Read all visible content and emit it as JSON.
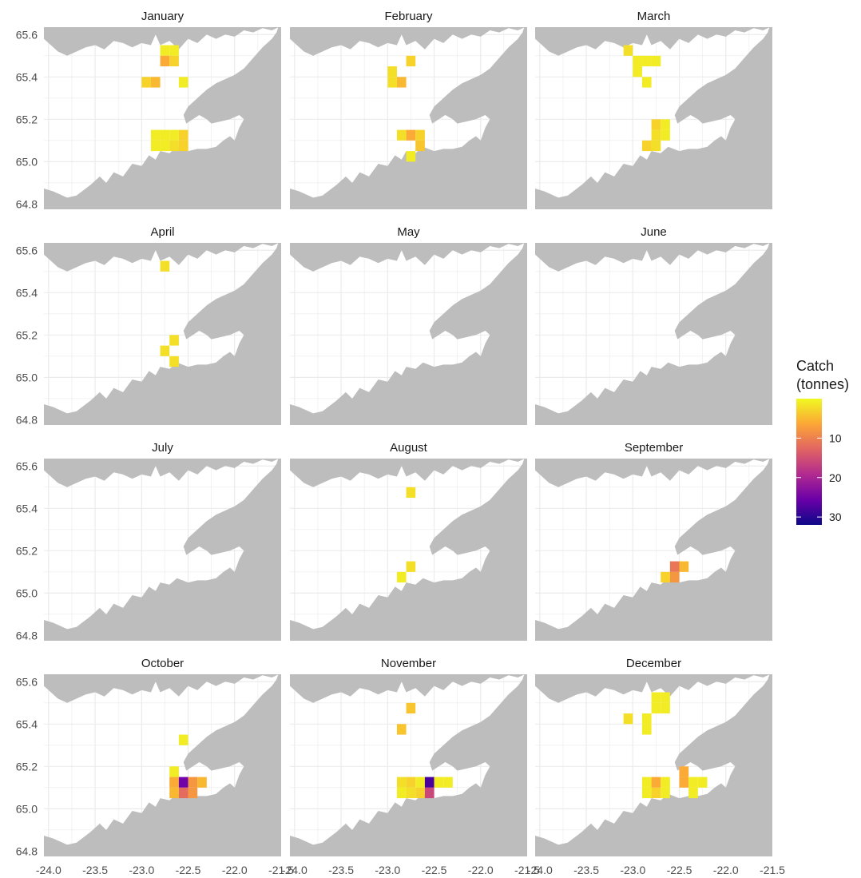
{
  "chart_data": {
    "type": "heatmap",
    "subtype": "faceted geographic heatmap over a land outline",
    "facet_layout": {
      "rows": 4,
      "cols": 3
    },
    "xlim": [
      -24.05,
      -21.5
    ],
    "ylim": [
      64.775,
      65.635
    ],
    "x_ticks": [
      -24.0,
      -23.5,
      -23.0,
      -22.5,
      -22.0,
      -21.5
    ],
    "x_tick_labels": [
      "-24.0",
      "-23.5",
      "-23.0",
      "-22.5",
      "-22.0",
      "-21.5"
    ],
    "y_ticks": [
      64.8,
      65.0,
      65.2,
      65.4,
      65.6
    ],
    "y_tick_labels": [
      "64.8",
      "65.0",
      "65.2",
      "65.4",
      "65.6"
    ],
    "cell_size": {
      "lon": 0.1,
      "lat": 0.05
    },
    "grid": true,
    "land_color": "#bdbdbd",
    "panel_background": "#ffffff",
    "grid_color": "#ebebeb",
    "legend": {
      "title_lines": [
        "Catch",
        "(tonnes)"
      ],
      "placement": "right",
      "scale": "reversed plasma",
      "min": 0,
      "max": 32,
      "ticks": [
        10,
        20,
        30
      ],
      "tick_labels": [
        "10",
        "20",
        "30"
      ],
      "colors": [
        "#f0f921",
        "#fca636",
        "#e16462",
        "#b12a90",
        "#6a00a8",
        "#0d0887"
      ]
    },
    "panels": [
      {
        "title": "January",
        "cells": [
          {
            "lon": -22.75,
            "lat": 65.525,
            "catch": 1
          },
          {
            "lon": -22.65,
            "lat": 65.525,
            "catch": 1
          },
          {
            "lon": -22.75,
            "lat": 65.475,
            "catch": 6
          },
          {
            "lon": -22.65,
            "lat": 65.475,
            "catch": 3
          },
          {
            "lon": -22.95,
            "lat": 65.375,
            "catch": 3
          },
          {
            "lon": -22.85,
            "lat": 65.375,
            "catch": 5
          },
          {
            "lon": -22.55,
            "lat": 65.375,
            "catch": 1
          },
          {
            "lon": -22.85,
            "lat": 65.125,
            "catch": 1
          },
          {
            "lon": -22.75,
            "lat": 65.125,
            "catch": 1
          },
          {
            "lon": -22.65,
            "lat": 65.125,
            "catch": 1
          },
          {
            "lon": -22.55,
            "lat": 65.125,
            "catch": 3
          },
          {
            "lon": -22.85,
            "lat": 65.075,
            "catch": 1
          },
          {
            "lon": -22.75,
            "lat": 65.075,
            "catch": 1
          },
          {
            "lon": -22.65,
            "lat": 65.075,
            "catch": 2
          },
          {
            "lon": -22.55,
            "lat": 65.075,
            "catch": 3
          }
        ]
      },
      {
        "title": "February",
        "cells": [
          {
            "lon": -22.75,
            "lat": 65.475,
            "catch": 3
          },
          {
            "lon": -22.95,
            "lat": 65.425,
            "catch": 2
          },
          {
            "lon": -22.95,
            "lat": 65.375,
            "catch": 2
          },
          {
            "lon": -22.85,
            "lat": 65.375,
            "catch": 5
          },
          {
            "lon": -22.85,
            "lat": 65.125,
            "catch": 2
          },
          {
            "lon": -22.75,
            "lat": 65.125,
            "catch": 6
          },
          {
            "lon": -22.65,
            "lat": 65.125,
            "catch": 3
          },
          {
            "lon": -22.65,
            "lat": 65.075,
            "catch": 4
          },
          {
            "lon": -22.75,
            "lat": 65.025,
            "catch": 1
          }
        ]
      },
      {
        "title": "March",
        "cells": [
          {
            "lon": -23.05,
            "lat": 65.525,
            "catch": 2
          },
          {
            "lon": -22.95,
            "lat": 65.475,
            "catch": 1
          },
          {
            "lon": -22.85,
            "lat": 65.475,
            "catch": 1
          },
          {
            "lon": -22.75,
            "lat": 65.475,
            "catch": 1
          },
          {
            "lon": -22.95,
            "lat": 65.425,
            "catch": 1
          },
          {
            "lon": -22.85,
            "lat": 65.375,
            "catch": 1
          },
          {
            "lon": -22.75,
            "lat": 65.175,
            "catch": 3
          },
          {
            "lon": -22.65,
            "lat": 65.175,
            "catch": 1
          },
          {
            "lon": -22.75,
            "lat": 65.125,
            "catch": 2
          },
          {
            "lon": -22.65,
            "lat": 65.125,
            "catch": 1
          },
          {
            "lon": -22.85,
            "lat": 65.075,
            "catch": 3
          },
          {
            "lon": -22.75,
            "lat": 65.075,
            "catch": 2
          }
        ]
      },
      {
        "title": "April",
        "cells": [
          {
            "lon": -22.75,
            "lat": 65.525,
            "catch": 2
          },
          {
            "lon": -22.65,
            "lat": 65.175,
            "catch": 2
          },
          {
            "lon": -22.75,
            "lat": 65.125,
            "catch": 2
          },
          {
            "lon": -22.65,
            "lat": 65.075,
            "catch": 2
          }
        ]
      },
      {
        "title": "May",
        "cells": []
      },
      {
        "title": "June",
        "cells": []
      },
      {
        "title": "July",
        "cells": []
      },
      {
        "title": "August",
        "cells": [
          {
            "lon": -22.75,
            "lat": 65.475,
            "catch": 2
          },
          {
            "lon": -22.75,
            "lat": 65.125,
            "catch": 2
          },
          {
            "lon": -22.85,
            "lat": 65.075,
            "catch": 1
          }
        ]
      },
      {
        "title": "September",
        "cells": [
          {
            "lon": -22.55,
            "lat": 65.125,
            "catch": 11
          },
          {
            "lon": -22.45,
            "lat": 65.125,
            "catch": 5
          },
          {
            "lon": -22.65,
            "lat": 65.075,
            "catch": 3
          },
          {
            "lon": -22.55,
            "lat": 65.075,
            "catch": 8
          }
        ]
      },
      {
        "title": "October",
        "cells": [
          {
            "lon": -22.55,
            "lat": 65.325,
            "catch": 1
          },
          {
            "lon": -22.65,
            "lat": 65.175,
            "catch": 1
          },
          {
            "lon": -22.65,
            "lat": 65.125,
            "catch": 6
          },
          {
            "lon": -22.55,
            "lat": 65.125,
            "catch": 25
          },
          {
            "lon": -22.45,
            "lat": 65.125,
            "catch": 8
          },
          {
            "lon": -22.35,
            "lat": 65.125,
            "catch": 5
          },
          {
            "lon": -22.65,
            "lat": 65.075,
            "catch": 5
          },
          {
            "lon": -22.55,
            "lat": 65.075,
            "catch": 12
          },
          {
            "lon": -22.45,
            "lat": 65.075,
            "catch": 8
          }
        ]
      },
      {
        "title": "November",
        "cells": [
          {
            "lon": -22.75,
            "lat": 65.475,
            "catch": 4
          },
          {
            "lon": -22.85,
            "lat": 65.375,
            "catch": 4
          },
          {
            "lon": -22.85,
            "lat": 65.125,
            "catch": 2
          },
          {
            "lon": -22.75,
            "lat": 65.125,
            "catch": 3
          },
          {
            "lon": -22.65,
            "lat": 65.125,
            "catch": 1
          },
          {
            "lon": -22.55,
            "lat": 65.125,
            "catch": 28
          },
          {
            "lon": -22.45,
            "lat": 65.125,
            "catch": 1
          },
          {
            "lon": -22.35,
            "lat": 65.125,
            "catch": 1
          },
          {
            "lon": -22.85,
            "lat": 65.075,
            "catch": 1
          },
          {
            "lon": -22.75,
            "lat": 65.075,
            "catch": 2
          },
          {
            "lon": -22.65,
            "lat": 65.075,
            "catch": 3
          },
          {
            "lon": -22.55,
            "lat": 65.075,
            "catch": 16
          }
        ]
      },
      {
        "title": "December",
        "cells": [
          {
            "lon": -22.75,
            "lat": 65.525,
            "catch": 1
          },
          {
            "lon": -22.65,
            "lat": 65.525,
            "catch": 1
          },
          {
            "lon": -22.75,
            "lat": 65.475,
            "catch": 1
          },
          {
            "lon": -22.65,
            "lat": 65.475,
            "catch": 1
          },
          {
            "lon": -23.05,
            "lat": 65.425,
            "catch": 2
          },
          {
            "lon": -22.85,
            "lat": 65.425,
            "catch": 1
          },
          {
            "lon": -22.85,
            "lat": 65.375,
            "catch": 1
          },
          {
            "lon": -22.45,
            "lat": 65.175,
            "catch": 6
          },
          {
            "lon": -22.85,
            "lat": 65.125,
            "catch": 1
          },
          {
            "lon": -22.75,
            "lat": 65.125,
            "catch": 6
          },
          {
            "lon": -22.65,
            "lat": 65.125,
            "catch": 1
          },
          {
            "lon": -22.45,
            "lat": 65.125,
            "catch": 6
          },
          {
            "lon": -22.35,
            "lat": 65.125,
            "catch": 1
          },
          {
            "lon": -22.25,
            "lat": 65.125,
            "catch": 1
          },
          {
            "lon": -22.85,
            "lat": 65.075,
            "catch": 1
          },
          {
            "lon": -22.75,
            "lat": 65.075,
            "catch": 3
          },
          {
            "lon": -22.65,
            "lat": 65.075,
            "catch": 1
          },
          {
            "lon": -22.35,
            "lat": 65.075,
            "catch": 1
          }
        ]
      }
    ]
  }
}
